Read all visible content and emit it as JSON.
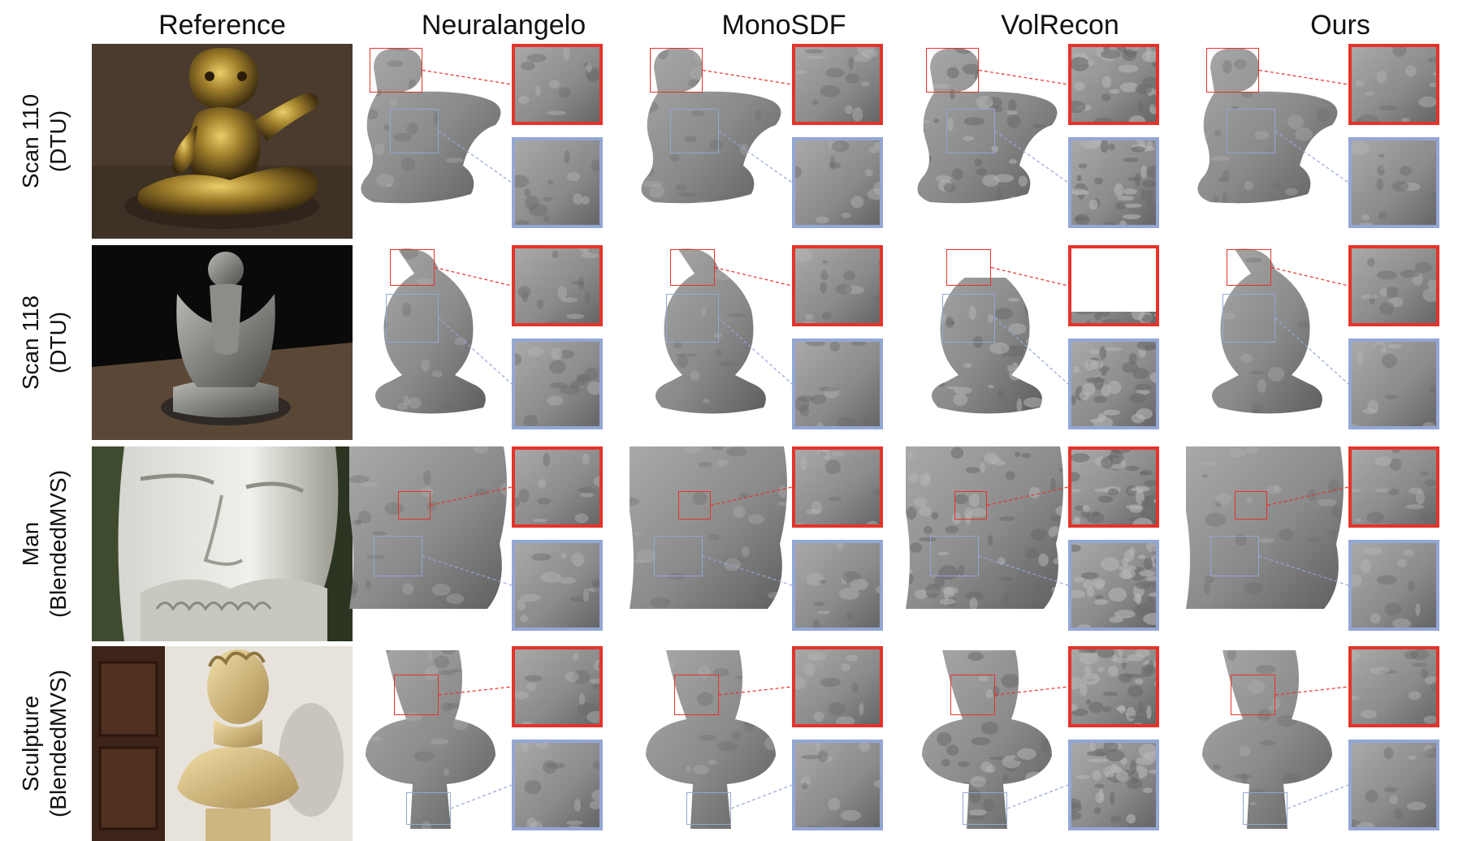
{
  "figure": {
    "columns": [
      "Reference",
      "Neuralangelo",
      "MonoSDF",
      "VolRecon",
      "Ours"
    ],
    "rows": [
      {
        "name": "Scan 110",
        "dataset": "(DTU)"
      },
      {
        "name": "Scan 118",
        "dataset": "(DTU)"
      },
      {
        "name": "Man",
        "dataset": "(BlendedMVS)"
      },
      {
        "name": "Sculpture",
        "dataset": "(BlendedMVS)"
      }
    ],
    "colors": {
      "zoom_primary": "#e5332a",
      "zoom_secondary": "#93a7d4",
      "mesh_gray": "#8a8a8a",
      "background": "#ffffff"
    }
  }
}
